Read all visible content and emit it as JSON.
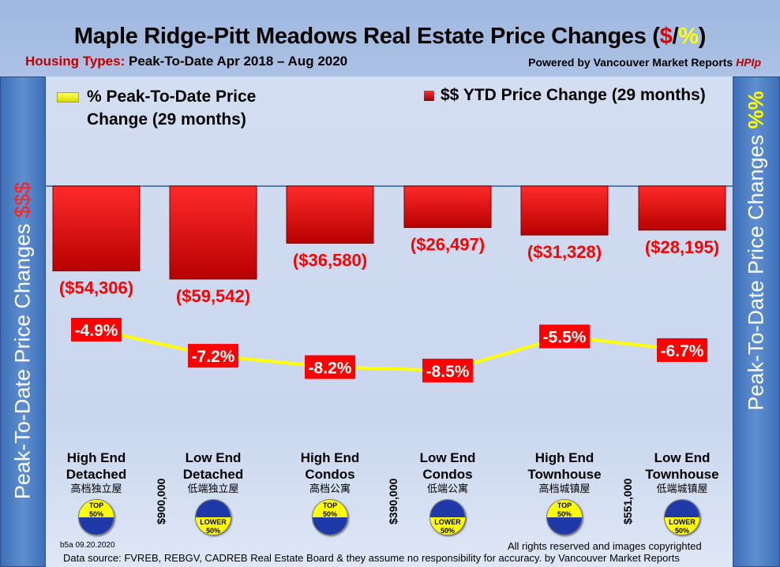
{
  "header": {
    "title_main": "Maple Ridge-Pitt Meadows Real Estate Price Changes (",
    "title_dollar": "$",
    "title_slash": "/",
    "title_pct": "%",
    "title_close": ")",
    "subtitle_label": "Housing Types:",
    "subtitle_text": "Peak-To-Date Apr 2018 – Aug 2020",
    "powered_prefix": "Powered by ",
    "powered_name": "Vancouver Market Reports ",
    "powered_brand": "HPIp"
  },
  "left_axis": {
    "label": "Peak-To-Date Price Changes ",
    "symbol": "$$$"
  },
  "right_axis": {
    "label": "Peak-To-Date  Price  Changes ",
    "symbol": "%%"
  },
  "colors": {
    "bar": "#e00000",
    "line": "#ffff00",
    "label_bg": "#ff0000",
    "badge_blue": "#1f3aa8",
    "badge_yellow": "#ffff00"
  },
  "chart_data": {
    "type": "bar+line",
    "categories": [
      "High End Detached",
      "Low End Detached",
      "High End Condos",
      "Low End Condos",
      "High End Townhouse",
      "Low End Townhouse"
    ],
    "series": [
      {
        "name": "$$ YTD Price Change (29 months)",
        "type": "bar",
        "values": [
          -54306,
          -59542,
          -36580,
          -26497,
          -31328,
          -28195
        ],
        "labels": [
          "($54,306)",
          "($59,542)",
          "($36,580)",
          "($26,497)",
          "($31,328)",
          "($28,195)"
        ]
      },
      {
        "name": "% Peak-To-Date Price Change (29 months)",
        "type": "line",
        "values": [
          -4.9,
          -7.2,
          -8.2,
          -8.5,
          -5.5,
          -6.7
        ],
        "labels": [
          "-4.9%",
          "-7.2%",
          "-8.2%",
          "-8.5%",
          "-5.5%",
          "-6.7%"
        ]
      }
    ],
    "legend": {
      "line_label_1": "% Peak-To-Date Price",
      "line_label_2": "Change (29 months)",
      "bar_label": "$$ YTD Price Change (29 months)"
    }
  },
  "categories": [
    {
      "l1": "High End",
      "l2": "Detached",
      "cn": "高档独立屋",
      "badge": "top"
    },
    {
      "l1": "Low End",
      "l2": "Detached",
      "cn": "低端独立屋",
      "badge": "lower"
    },
    {
      "l1": "High End",
      "l2": "Condos",
      "cn": "高档公寓",
      "badge": "top"
    },
    {
      "l1": "Low End",
      "l2": "Condos",
      "cn": "低端公寓",
      "badge": "lower"
    },
    {
      "l1": "High End",
      "l2": "Townhouse",
      "cn": "高档城镇屋",
      "badge": "top"
    },
    {
      "l1": "Low End",
      "l2": "Townhouse",
      "cn": "低端城镇屋",
      "badge": "lower"
    }
  ],
  "badges": {
    "top_1": "TOP",
    "top_2": "50%",
    "lower_1": "LOWER",
    "lower_2": "50%"
  },
  "thresholds": [
    "$900,000",
    "$390,000",
    "$551,000"
  ],
  "footer": {
    "version": "b5a 09.20.2020",
    "rights": "All rights reserved and  images copyrighted",
    "source": "Data source: FVREB, REBGV, CADREB Real Estate Board & they assume no responsibility for accuracy. by Vancouver Market Reports"
  }
}
